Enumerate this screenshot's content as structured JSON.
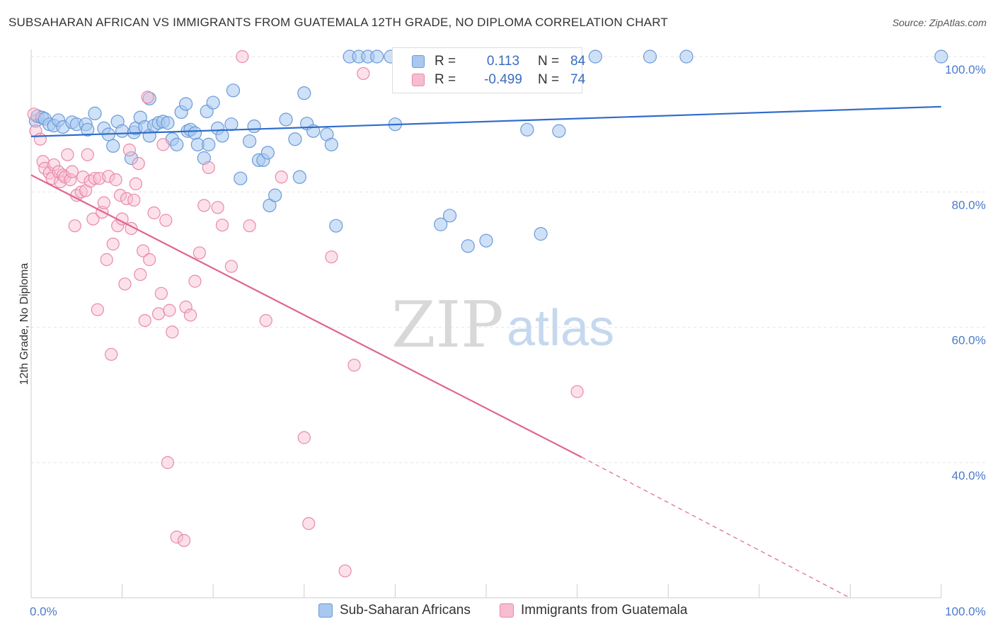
{
  "title": "SUBSAHARAN AFRICAN VS IMMIGRANTS FROM GUATEMALA 12TH GRADE, NO DIPLOMA CORRELATION CHART",
  "source": "Source: ZipAtlas.com",
  "watermark": {
    "zip": "ZIP",
    "atlas": "atlas"
  },
  "legend": {
    "rows": [
      {
        "r_label": "R =",
        "r_value": "0.113",
        "n_label": "N =",
        "n_value": "84"
      },
      {
        "r_label": "R =",
        "r_value": "-0.499",
        "n_label": "N =",
        "n_value": "74"
      }
    ]
  },
  "bottom_legend": {
    "series1": "Sub-Saharan Africans",
    "series2": "Immigrants from Guatemala"
  },
  "colors": {
    "blue_fill": "#a8c8f0",
    "blue_stroke": "#6a9ad8",
    "blue_line": "#2f6ccc",
    "pink_fill": "#f8bcd0",
    "pink_stroke": "#e88aa8",
    "pink_line": "#e0658f",
    "grid": "#e6e6e6",
    "axis_text": "#4a7bc8"
  },
  "chart_data": {
    "type": "scatter",
    "title": "SUBSAHARAN AFRICAN VS IMMIGRANTS FROM GUATEMALA 12TH GRADE, NO DIPLOMA CORRELATION CHART",
    "xlabel": "",
    "ylabel": "12th Grade, No Diploma",
    "xlim": [
      0,
      100
    ],
    "ylim": [
      20,
      103
    ],
    "x_tick_labels": [
      "0.0%",
      "100.0%"
    ],
    "y_ticks": [
      100,
      80,
      60,
      40
    ],
    "y_tick_labels": [
      "100.0%",
      "80.0%",
      "60.0%",
      "40.0%"
    ],
    "grid": true,
    "legend_position": "top-center",
    "series": [
      {
        "name": "Sub-Saharan Africans",
        "color": "#a8c8f0",
        "trend": {
          "x": [
            0,
            100
          ],
          "y": [
            88.2,
            92.6
          ]
        },
        "points": [
          [
            0.5,
            90.5
          ],
          [
            0.7,
            91.2
          ],
          [
            1.2,
            91
          ],
          [
            1.5,
            90.8
          ],
          [
            2,
            90
          ],
          [
            2.5,
            89.8
          ],
          [
            3,
            90.6
          ],
          [
            3.5,
            89.6
          ],
          [
            4.5,
            90.3
          ],
          [
            5,
            90
          ],
          [
            6,
            90
          ],
          [
            6.2,
            89.2
          ],
          [
            7,
            91.6
          ],
          [
            8,
            89.4
          ],
          [
            8.5,
            88.5
          ],
          [
            9,
            86.8
          ],
          [
            9.5,
            90.4
          ],
          [
            10,
            89
          ],
          [
            11,
            85
          ],
          [
            11.3,
            88.8
          ],
          [
            11.5,
            89.4
          ],
          [
            12,
            91
          ],
          [
            12.5,
            89.6
          ],
          [
            13,
            88.3
          ],
          [
            13,
            93.8
          ],
          [
            13.5,
            89.8
          ],
          [
            14,
            90.2
          ],
          [
            14.5,
            90.4
          ],
          [
            15,
            90.2
          ],
          [
            15.5,
            87.8
          ],
          [
            16,
            87
          ],
          [
            16.5,
            91.8
          ],
          [
            17,
            93
          ],
          [
            17.2,
            89
          ],
          [
            17.5,
            89.2
          ],
          [
            18,
            88.7
          ],
          [
            18.3,
            87
          ],
          [
            19,
            85
          ],
          [
            19.3,
            91.9
          ],
          [
            19.5,
            87
          ],
          [
            20,
            93.2
          ],
          [
            20.5,
            89.4
          ],
          [
            21,
            88.3
          ],
          [
            22,
            90
          ],
          [
            22.2,
            95
          ],
          [
            23,
            82
          ],
          [
            24,
            87.5
          ],
          [
            24.5,
            89.7
          ],
          [
            25,
            84.7
          ],
          [
            25.5,
            84.7
          ],
          [
            26,
            85.8
          ],
          [
            26.2,
            78
          ],
          [
            26.8,
            79.5
          ],
          [
            28,
            90.7
          ],
          [
            29,
            87.8
          ],
          [
            29.5,
            82.2
          ],
          [
            30,
            94.6
          ],
          [
            30.3,
            90.1
          ],
          [
            31,
            89
          ],
          [
            32.5,
            88.5
          ],
          [
            33,
            87
          ],
          [
            33.5,
            75
          ],
          [
            35,
            100
          ],
          [
            36,
            100
          ],
          [
            37,
            100
          ],
          [
            38,
            100
          ],
          [
            39.5,
            100
          ],
          [
            40,
            90
          ],
          [
            41,
            100
          ],
          [
            43,
            100
          ],
          [
            45,
            75.2
          ],
          [
            46,
            76.5
          ],
          [
            48,
            72
          ],
          [
            50,
            72.8
          ],
          [
            53,
            100
          ],
          [
            54.5,
            89.2
          ],
          [
            56,
            73.8
          ],
          [
            58,
            89
          ],
          [
            62,
            100
          ],
          [
            68,
            100
          ],
          [
            72,
            100
          ],
          [
            100,
            100
          ]
        ]
      },
      {
        "name": "Immigrants from Guatemala",
        "color": "#f8bcd0",
        "trend": {
          "x": [
            0,
            60.5
          ],
          "y": [
            82.5,
            40.8
          ],
          "dashed_to": {
            "x": 90,
            "y": 20
          }
        },
        "points": [
          [
            0.3,
            91.5
          ],
          [
            0.5,
            89
          ],
          [
            1,
            87.8
          ],
          [
            1.3,
            84.5
          ],
          [
            1.5,
            83.5
          ],
          [
            2,
            82.8
          ],
          [
            2.3,
            82
          ],
          [
            2.5,
            84
          ],
          [
            3,
            83
          ],
          [
            3.2,
            81.5
          ],
          [
            3.5,
            82.5
          ],
          [
            3.7,
            82.2
          ],
          [
            4,
            85.5
          ],
          [
            4.3,
            81.8
          ],
          [
            4.5,
            83
          ],
          [
            4.8,
            75
          ],
          [
            5,
            79.5
          ],
          [
            5.5,
            80
          ],
          [
            5.7,
            82.2
          ],
          [
            6,
            80.2
          ],
          [
            6.2,
            85.5
          ],
          [
            6.5,
            81.6
          ],
          [
            6.8,
            76
          ],
          [
            7,
            82
          ],
          [
            7.3,
            62.6
          ],
          [
            7.5,
            82
          ],
          [
            7.8,
            77
          ],
          [
            8,
            78.4
          ],
          [
            8.3,
            70
          ],
          [
            8.5,
            82.3
          ],
          [
            8.8,
            56
          ],
          [
            9,
            72.3
          ],
          [
            9.3,
            81.8
          ],
          [
            9.5,
            75
          ],
          [
            9.8,
            79.5
          ],
          [
            10,
            76
          ],
          [
            10.3,
            66.4
          ],
          [
            10.5,
            79
          ],
          [
            10.8,
            86.2
          ],
          [
            11,
            74.6
          ],
          [
            11.3,
            78.8
          ],
          [
            11.5,
            81.2
          ],
          [
            11.8,
            84.2
          ],
          [
            12,
            67.8
          ],
          [
            12.3,
            71.3
          ],
          [
            12.5,
            61
          ],
          [
            12.8,
            94
          ],
          [
            13,
            70
          ],
          [
            13.5,
            76.9
          ],
          [
            14,
            62
          ],
          [
            14.3,
            65
          ],
          [
            14.5,
            87
          ],
          [
            14.8,
            75.8
          ],
          [
            15,
            40
          ],
          [
            15.2,
            62.5
          ],
          [
            15.5,
            59.3
          ],
          [
            16,
            29
          ],
          [
            16.8,
            28.5
          ],
          [
            17,
            63
          ],
          [
            17.5,
            61.8
          ],
          [
            18,
            66.8
          ],
          [
            18.5,
            71
          ],
          [
            19,
            78
          ],
          [
            19.5,
            83.6
          ],
          [
            20.5,
            77.7
          ],
          [
            21,
            75.1
          ],
          [
            22,
            69
          ],
          [
            23.2,
            100
          ],
          [
            24,
            75
          ],
          [
            25.8,
            61
          ],
          [
            27.5,
            82.2
          ],
          [
            30,
            43.7
          ],
          [
            30.5,
            31
          ],
          [
            33,
            70.4
          ],
          [
            34.5,
            24
          ],
          [
            35.5,
            54.4
          ],
          [
            36.5,
            97.5
          ],
          [
            60,
            50.5
          ]
        ]
      }
    ]
  }
}
